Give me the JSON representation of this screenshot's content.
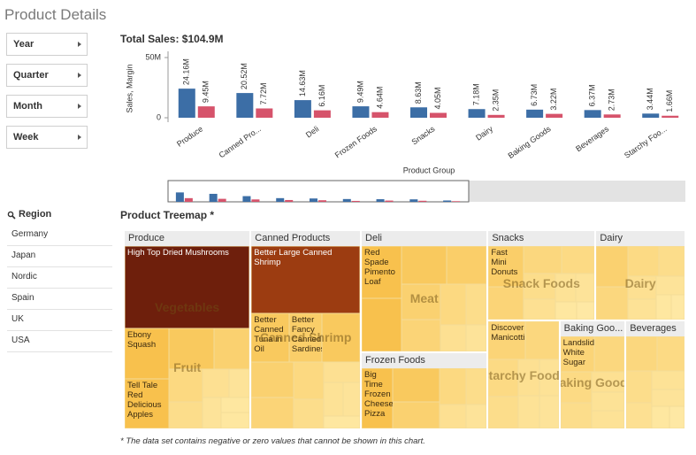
{
  "header": {
    "title": "Product Details"
  },
  "filters": [
    "Year",
    "Quarter",
    "Month",
    "Week"
  ],
  "region": {
    "title": "Region",
    "items": [
      "Germany",
      "Japan",
      "Nordic",
      "Spain",
      "UK",
      "USA"
    ]
  },
  "chart_data": [
    {
      "type": "bar",
      "title": "Total Sales: $104.9M",
      "x_label": "Product Group",
      "y_label": "Sales, Margin",
      "categories": [
        "Produce",
        "Canned Pro...",
        "Deli",
        "Frozen Foods",
        "Snacks",
        "Dairy",
        "Baking Goods",
        "Beverages",
        "Starchy Foo..."
      ],
      "series": [
        {
          "color": "#3c6ea6",
          "values": [
            24.16,
            20.52,
            14.63,
            9.49,
            8.63,
            7.18,
            6.73,
            6.37,
            3.44
          ],
          "value_labels": [
            "24.16M",
            "20.52M",
            "14.63M",
            "9.49M",
            "8.63M",
            "7.18M",
            "6.73M",
            "6.37M",
            "3.44M"
          ]
        },
        {
          "color": "#d6536b",
          "values": [
            9.45,
            7.72,
            6.16,
            4.64,
            4.05,
            2.35,
            3.22,
            2.73,
            1.66
          ],
          "value_labels": [
            "9.45M",
            "7.72M",
            "6.16M",
            "4.64M",
            "4.05M",
            "2.35M",
            "3.22M",
            "2.73M",
            "1.66M"
          ]
        }
      ],
      "ylim": [
        0,
        50
      ],
      "yticks": [
        0,
        {
          "value": 50,
          "label": "50M"
        }
      ]
    },
    {
      "type": "treemap",
      "title": "Product Treemap *",
      "footnote": "* The data set contains negative or zero values that cannot be shown in this chart.",
      "color_stops": [
        [
          0,
          "#fff0b5"
        ],
        [
          3,
          "#f8c14d"
        ],
        [
          8,
          "#b34a14"
        ],
        [
          14,
          "#6e1f0c"
        ]
      ],
      "groups": [
        {
          "name": "Produce",
          "watermarks": [
            "Vegetables",
            "Fruit"
          ],
          "items": [
            {
              "name": "High Top Dried Mushrooms",
              "value": 14
            },
            {
              "name": "Ebony Squash",
              "value": 3
            },
            {
              "name": "Tell Tale Red Delicious Apples",
              "value": 3
            },
            {
              "name": null,
              "value": 2.5
            },
            {
              "name": null,
              "value": 2
            },
            {
              "name": null,
              "value": 1.5
            },
            {
              "name": null,
              "value": 1.2
            },
            {
              "name": null,
              "value": 1
            },
            {
              "name": null,
              "value": 0.8
            },
            {
              "name": null,
              "value": 0.8
            },
            {
              "name": null,
              "value": 0.6
            },
            {
              "name": null,
              "value": 0.6
            }
          ]
        },
        {
          "name": "Canned Products",
          "watermarks": [
            "Canned Shrimp"
          ],
          "items": [
            {
              "name": "Better Large Canned Shrimp",
              "value": 10
            },
            {
              "name": "Better Canned Tuna in Oil",
              "value": 2.5
            },
            {
              "name": "Better Fancy Canned Sardines",
              "value": 2.2
            },
            {
              "name": null,
              "value": 2.5
            },
            {
              "name": null,
              "value": 2
            },
            {
              "name": null,
              "value": 1.8
            },
            {
              "name": null,
              "value": 1.5
            },
            {
              "name": null,
              "value": 1.2
            },
            {
              "name": null,
              "value": 1
            },
            {
              "name": null,
              "value": 0.9
            },
            {
              "name": null,
              "value": 0.8
            },
            {
              "name": null,
              "value": 0.6
            }
          ]
        },
        {
          "name": "Deli",
          "watermarks": [
            "Meat"
          ],
          "items": [
            {
              "name": "Red Spade Pimento Loaf",
              "value": 3
            },
            {
              "name": null,
              "value": 3
            },
            {
              "name": null,
              "value": 2.5
            },
            {
              "name": null,
              "value": 2.2
            },
            {
              "name": null,
              "value": 2
            },
            {
              "name": null,
              "value": 1.8
            },
            {
              "name": null,
              "value": 1.5
            },
            {
              "name": null,
              "value": 1.2
            },
            {
              "name": null,
              "value": 1
            },
            {
              "name": null,
              "value": 0.8
            }
          ]
        },
        {
          "name": "Frozen Foods",
          "items": [
            {
              "name": "Big Time Frozen Cheese Pizza",
              "value": 3
            },
            {
              "name": null,
              "value": 2.5
            },
            {
              "name": null,
              "value": 2
            },
            {
              "name": null,
              "value": 1.5
            },
            {
              "name": null,
              "value": 1.2
            },
            {
              "name": null,
              "value": 1
            },
            {
              "name": null,
              "value": 0.8
            }
          ]
        },
        {
          "name": "Snacks",
          "watermarks": [
            "Snack Foods"
          ],
          "items": [
            {
              "name": "Fast Mini Donuts",
              "value": 2.2
            },
            {
              "name": null,
              "value": 1.8
            },
            {
              "name": null,
              "value": 1.6
            },
            {
              "name": null,
              "value": 1.4
            },
            {
              "name": null,
              "value": 1.2
            },
            {
              "name": null,
              "value": 1
            },
            {
              "name": null,
              "value": 0.9
            },
            {
              "name": null,
              "value": 0.8
            },
            {
              "name": null,
              "value": 0.6
            },
            {
              "name": null,
              "value": 0.5
            }
          ]
        },
        {
          "name": "Dairy",
          "watermarks": [
            "Dairy"
          ],
          "items": [
            {
              "name": null,
              "value": 2
            },
            {
              "name": null,
              "value": 1.6
            },
            {
              "name": null,
              "value": 1.4
            },
            {
              "name": null,
              "value": 1.2
            },
            {
              "name": null,
              "value": 1
            },
            {
              "name": null,
              "value": 0.9
            },
            {
              "name": null,
              "value": 0.8
            },
            {
              "name": null,
              "value": 0.6
            },
            {
              "name": null,
              "value": 0.5
            }
          ]
        },
        {
          "name": null,
          "watermarks": [
            "Starchy Foods"
          ],
          "items": [
            {
              "name": "Discover Manicotti",
              "value": 1.8
            },
            {
              "name": null,
              "value": 1.6
            },
            {
              "name": null,
              "value": 1.4
            },
            {
              "name": null,
              "value": 1.2
            },
            {
              "name": null,
              "value": 1
            },
            {
              "name": null,
              "value": 0.9
            },
            {
              "name": null,
              "value": 0.9
            },
            {
              "name": null,
              "value": 0.8
            }
          ]
        },
        {
          "name": "Baking Goo...",
          "watermarks": [
            "Baking Goods"
          ],
          "items": [
            {
              "name": "Landslide White Sugar",
              "value": 1.8
            },
            {
              "name": null,
              "value": 1.6
            },
            {
              "name": null,
              "value": 1.4
            },
            {
              "name": null,
              "value": 1.2
            },
            {
              "name": null,
              "value": 1
            },
            {
              "name": null,
              "value": 0.9
            },
            {
              "name": null,
              "value": 0.9
            }
          ]
        },
        {
          "name": "Beverages",
          "items": [
            {
              "name": null,
              "value": 1.6
            },
            {
              "name": null,
              "value": 1.4
            },
            {
              "name": null,
              "value": 1.2
            },
            {
              "name": null,
              "value": 1
            },
            {
              "name": null,
              "value": 0.9
            },
            {
              "name": null,
              "value": 0.8
            },
            {
              "name": null,
              "value": 0.6
            },
            {
              "name": null,
              "value": 0.5
            }
          ]
        }
      ]
    }
  ]
}
